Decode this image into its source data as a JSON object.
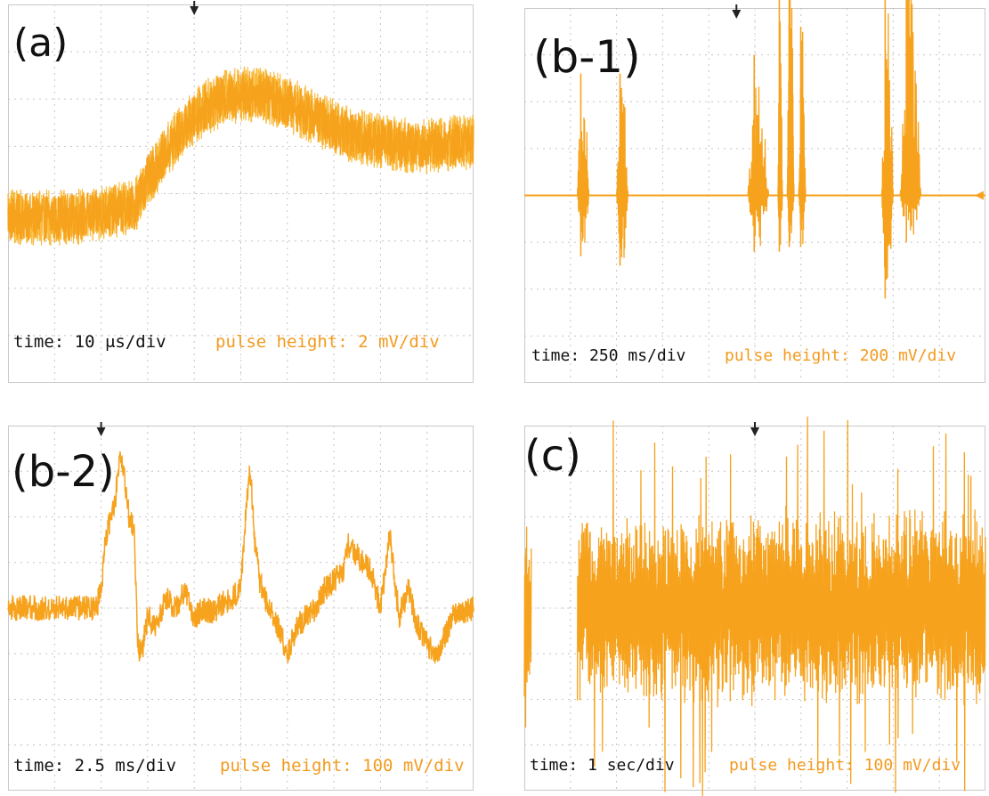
{
  "chart_data": [
    {
      "type": "line",
      "label": "(a)",
      "caption_time": "time: 10 μs/div",
      "caption_pulse": "pulse height: 2 mV/div",
      "xlim": [
        0,
        100
      ],
      "ylim": [
        -40,
        40
      ],
      "x_div": 10,
      "y_div": 8,
      "grid": true,
      "trigger_marker": "top",
      "series": [
        {
          "style": "noisy",
          "x": [
            0,
            14,
            27,
            30,
            34,
            38,
            42,
            46,
            50,
            55,
            60,
            66,
            72,
            80,
            88,
            100
          ],
          "y": [
            -5,
            -5,
            -3,
            3,
            9,
            14,
            18,
            20,
            21,
            21,
            19,
            16,
            13,
            11,
            10,
            11
          ],
          "noise": 5
        }
      ],
      "color": "#f6a21c"
    },
    {
      "type": "line",
      "label": "(b-1)",
      "caption_time": "time: 250 ms/div",
      "caption_pulse": "pulse height: 200 mV/div",
      "xlim": [
        0,
        100
      ],
      "ylim": [
        -400,
        400
      ],
      "x_div": 10,
      "y_div": 8,
      "grid": true,
      "trigger_marker": "top",
      "offset_marker": "right",
      "series": [
        {
          "style": "bursts",
          "baseline": 0,
          "bursts": [
            {
              "x": [
                11.5,
                14.0
              ],
              "amp": [
                -130,
                260
              ]
            },
            {
              "x": [
                20.0,
                22.5
              ],
              "amp": [
                -150,
                260
              ]
            },
            {
              "x": [
                48.5,
                53.0
              ],
              "amp": [
                -120,
                300
              ]
            },
            {
              "x": [
                55.0,
                56.0
              ],
              "amp": [
                -120,
                420
              ]
            },
            {
              "x": [
                57.0,
                58.5
              ],
              "amp": [
                -110,
                500
              ]
            },
            {
              "x": [
                59.5,
                61.0
              ],
              "amp": [
                -110,
                360
              ]
            },
            {
              "x": [
                77.5,
                80.0
              ],
              "amp": [
                -220,
                420
              ]
            },
            {
              "x": [
                81.5,
                86.0
              ],
              "amp": [
                -100,
                520
              ]
            }
          ]
        }
      ],
      "color": "#f6a21c"
    },
    {
      "type": "line",
      "label": "(b-2)",
      "caption_time": "time: 2.5 ms/div",
      "caption_pulse": "pulse height: 100 mV/div",
      "xlim": [
        0,
        100
      ],
      "ylim": [
        -400,
        400
      ],
      "x_div": 10,
      "y_div": 8,
      "grid": true,
      "trigger_marker": "top",
      "offset_marker": "right",
      "series": [
        {
          "style": "noisy",
          "x": [
            0,
            19,
            20,
            21,
            22,
            23,
            24,
            25,
            26,
            27,
            28,
            29,
            30,
            32,
            34,
            36,
            38,
            40,
            42,
            44,
            46,
            48,
            50,
            51,
            52,
            53,
            54,
            56,
            58,
            60,
            62,
            64,
            66,
            68,
            70,
            72,
            73,
            74,
            76,
            78,
            80,
            82,
            84,
            86,
            88,
            90,
            92,
            94,
            96,
            100
          ],
          "y": [
            0,
            0,
            40,
            160,
            190,
            230,
            350,
            280,
            200,
            180,
            -100,
            -80,
            -20,
            -40,
            20,
            0,
            40,
            -20,
            0,
            -10,
            10,
            20,
            40,
            200,
            300,
            150,
            60,
            0,
            -40,
            -100,
            -40,
            -20,
            0,
            40,
            60,
            80,
            140,
            130,
            100,
            80,
            0,
            160,
            -20,
            40,
            -40,
            -80,
            -100,
            -60,
            -10,
            0
          ],
          "noise": 28
        }
      ],
      "color": "#f6a21c"
    },
    {
      "type": "line",
      "label": "(c)",
      "caption_time": "time: 1 sec/div",
      "caption_pulse": "pulse height: 100 mV/div",
      "xlim": [
        0,
        100
      ],
      "ylim": [
        -400,
        400
      ],
      "x_div": 10,
      "y_div": 8,
      "grid": true,
      "trigger_marker": "top",
      "series": [
        {
          "style": "dense",
          "active_ranges": [
            [
              0,
              1.5
            ],
            [
              11.5,
              100
            ]
          ],
          "amp": 230,
          "spike_amp": 420
        }
      ],
      "color": "#f6a21c"
    }
  ]
}
